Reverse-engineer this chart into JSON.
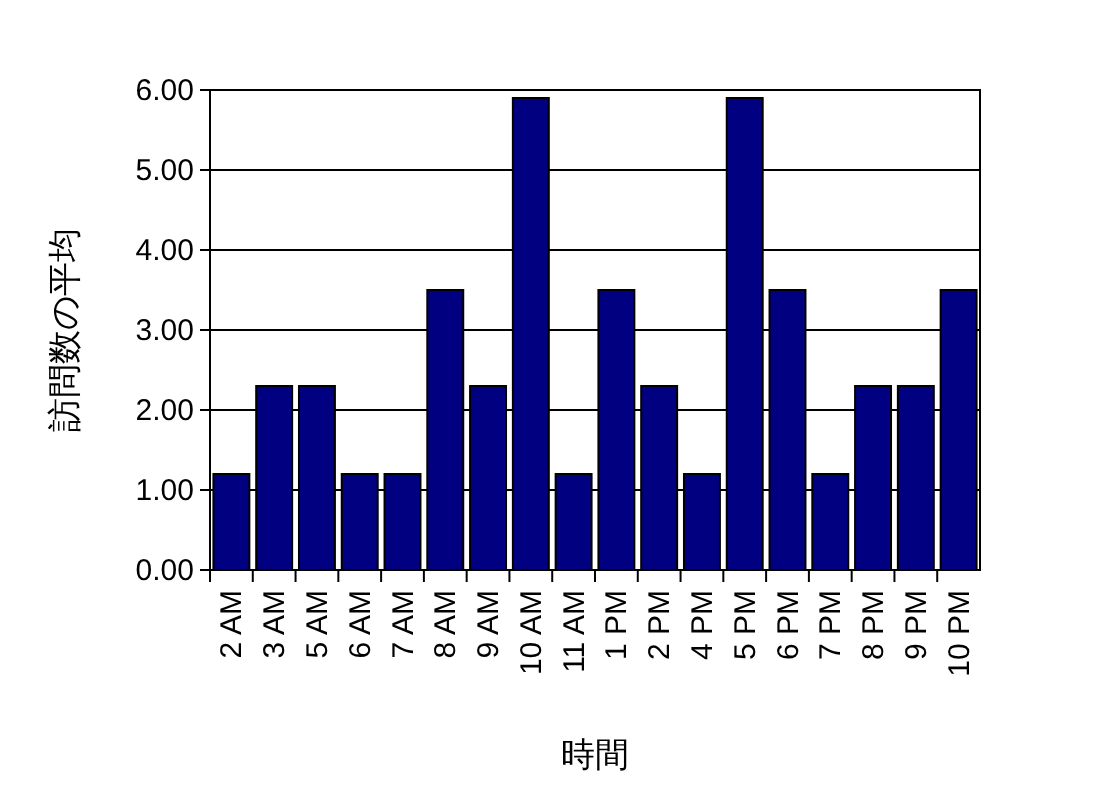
{
  "chart_data": {
    "type": "bar",
    "xlabel": "時間",
    "ylabel": "訪問数の平均",
    "categories": [
      "2 AM",
      "3 AM",
      "5 AM",
      "6 AM",
      "7 AM",
      "8 AM",
      "9 AM",
      "10 AM",
      "11 AM",
      "1 PM",
      "2 PM",
      "4 PM",
      "5 PM",
      "6 PM",
      "7 PM",
      "8 PM",
      "9 PM",
      "10 PM"
    ],
    "values": [
      1.2,
      2.3,
      2.3,
      1.2,
      1.2,
      3.5,
      2.3,
      5.9,
      1.2,
      3.5,
      2.3,
      1.2,
      5.9,
      3.5,
      1.2,
      2.3,
      2.3,
      3.5
    ],
    "color": "#000080",
    "ylim": [
      0,
      6
    ],
    "yticks": [
      {
        "value": 0,
        "label": "0.00"
      },
      {
        "value": 1,
        "label": "1.00"
      },
      {
        "value": 2,
        "label": "2.00"
      },
      {
        "value": 3,
        "label": "3.00"
      },
      {
        "value": 4,
        "label": "4.00"
      },
      {
        "value": 5,
        "label": "5.00"
      },
      {
        "value": 6,
        "label": "6.00"
      }
    ],
    "grid": "y"
  }
}
